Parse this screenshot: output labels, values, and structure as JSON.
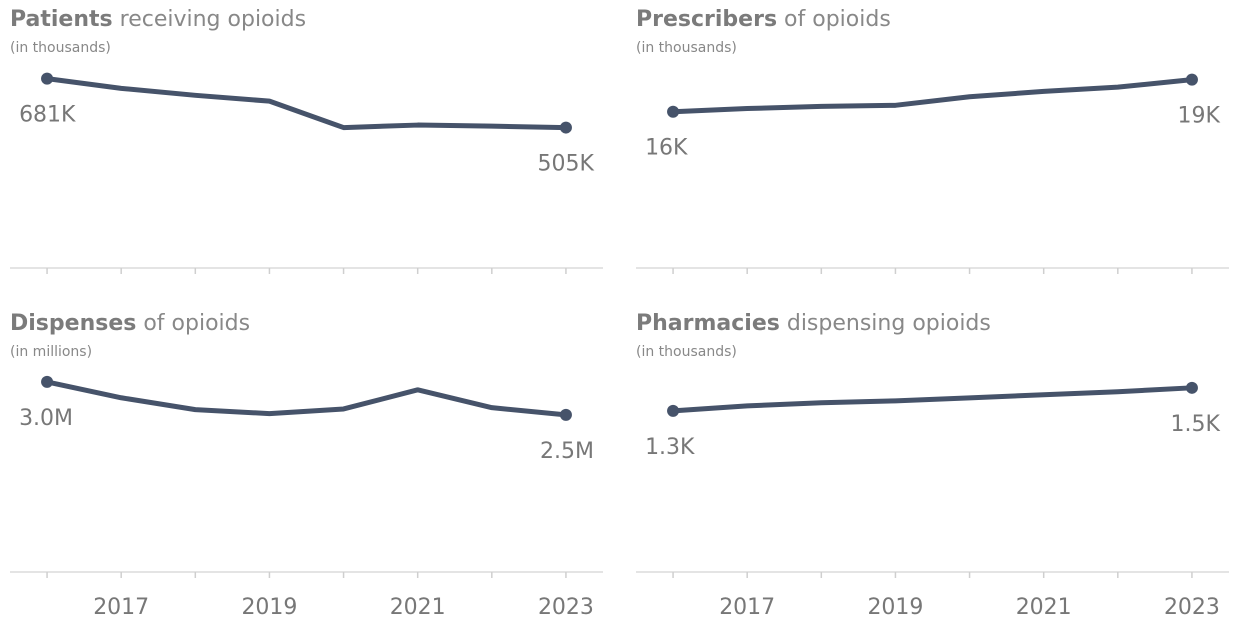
{
  "chart_data": [
    {
      "type": "line",
      "title_bold": "Patients",
      "title": "receiving opioids",
      "subtitle": "(in thousands)",
      "x": [
        2016,
        2017,
        2018,
        2019,
        2020,
        2021,
        2022,
        2023
      ],
      "values": [
        681,
        646,
        621,
        600,
        505,
        514,
        510,
        505
      ],
      "value_labels": [
        "681K",
        null,
        null,
        null,
        null,
        null,
        null,
        "505K"
      ],
      "color": "#46536a",
      "xlim": [
        2015.5,
        2023.5
      ],
      "ylim": [
        0,
        712
      ],
      "xticks": [
        2017,
        2019,
        2021,
        2023
      ],
      "xminorticks": [
        2016,
        2018,
        2020,
        2022
      ],
      "show_xtick_labels": false
    },
    {
      "type": "line",
      "title_bold": "Prescribers",
      "title": "of opioids",
      "subtitle": "(in thousands)",
      "x": [
        2016,
        2017,
        2018,
        2019,
        2020,
        2021,
        2022,
        2023
      ],
      "values": [
        16.0,
        16.3,
        16.5,
        16.6,
        17.4,
        17.9,
        18.3,
        19.0
      ],
      "value_labels": [
        "16K",
        null,
        null,
        null,
        null,
        null,
        null,
        "19K"
      ],
      "color": "#46536a",
      "xlim": [
        2015.5,
        2023.5
      ],
      "ylim": [
        1.4,
        19.9
      ],
      "xticks": [
        2017,
        2019,
        2021,
        2023
      ],
      "xminorticks": [
        2016,
        2018,
        2020,
        2022
      ],
      "show_xtick_labels": false
    },
    {
      "type": "line",
      "title_bold": "Dispenses",
      "title": "of opioids",
      "subtitle": "(in millions)",
      "x": [
        2016,
        2017,
        2018,
        2019,
        2020,
        2021,
        2022,
        2023
      ],
      "values": [
        3.0,
        2.76,
        2.58,
        2.52,
        2.59,
        2.88,
        2.61,
        2.5
      ],
      "value_labels": [
        "3.0M",
        null,
        null,
        null,
        null,
        null,
        null,
        "2.5M"
      ],
      "color": "#46536a",
      "xlim": [
        2015.5,
        2023.5
      ],
      "ylim": [
        0.12,
        3.12
      ],
      "xticks": [
        2017,
        2019,
        2021,
        2023
      ],
      "xminorticks": [
        2016,
        2018,
        2020,
        2022
      ],
      "show_xtick_labels": true
    },
    {
      "type": "line",
      "title_bold": "Pharmacies",
      "title": "dispensing opioids",
      "subtitle": "(in thousands)",
      "x": [
        2016,
        2017,
        2018,
        2019,
        2020,
        2021,
        2022,
        2023
      ],
      "values": [
        1.3,
        1.343,
        1.37,
        1.387,
        1.413,
        1.44,
        1.466,
        1.5
      ],
      "value_labels": [
        "1.3K",
        null,
        null,
        null,
        null,
        null,
        null,
        "1.5K"
      ],
      "color": "#46536a",
      "xlim": [
        2015.5,
        2023.5
      ],
      "ylim": [
        -0.1,
        1.62
      ],
      "xticks": [
        2017,
        2019,
        2021,
        2023
      ],
      "xminorticks": [
        2016,
        2018,
        2020,
        2022
      ],
      "show_xtick_labels": true
    }
  ]
}
